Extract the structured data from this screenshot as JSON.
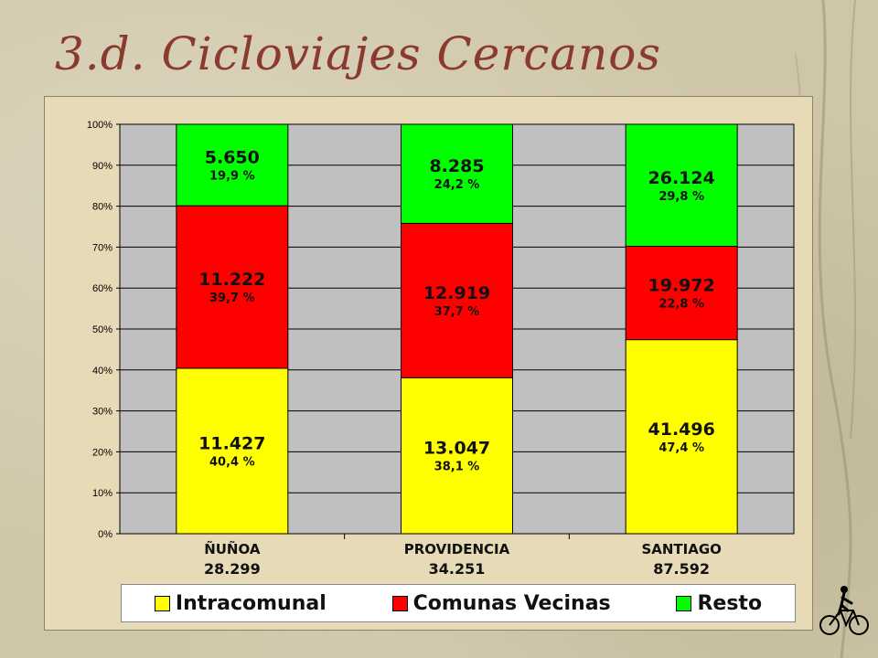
{
  "title": "3.d. Cicloviajes Cercanos",
  "chart_data": {
    "type": "bar",
    "stacked": true,
    "normalized_percent": true,
    "categories": [
      "ÑUÑOA",
      "PROVIDENCIA",
      "SANTIAGO"
    ],
    "category_totals": [
      "28.299",
      "34.251",
      "87.592"
    ],
    "series": [
      {
        "name": "Intracomunal",
        "color": "#ffff00",
        "values": [
          40.4,
          38.1,
          47.4
        ],
        "count_labels": [
          "11.427",
          "13.047",
          "41.496"
        ],
        "pct_labels": [
          "40,4 %",
          "38,1 %",
          "47,4 %"
        ]
      },
      {
        "name": "Comunas Vecinas",
        "color": "#ff0000",
        "values": [
          39.7,
          37.7,
          22.8
        ],
        "count_labels": [
          "11.222",
          "12.919",
          "19.972"
        ],
        "pct_labels": [
          "39,7 %",
          "37,7 %",
          "22,8 %"
        ]
      },
      {
        "name": "Resto",
        "color": "#00ff00",
        "values": [
          19.9,
          24.2,
          29.8
        ],
        "count_labels": [
          "5.650",
          "8.285",
          "26.124"
        ],
        "pct_labels": [
          "19,9 %",
          "24,2 %",
          "29,8 %"
        ]
      }
    ],
    "yticks": [
      "0%",
      "10%",
      "20%",
      "30%",
      "40%",
      "50%",
      "60%",
      "70%",
      "80%",
      "90%",
      "100%"
    ],
    "ylim": [
      0,
      100
    ],
    "grid": true,
    "legend_position": "bottom"
  },
  "colors": {
    "title": "#8b3a2e",
    "plot_bg": "#c0c0c0",
    "panel_bg": "#e6dbb6"
  },
  "icons": [
    "bicycle-rider-icon"
  ]
}
